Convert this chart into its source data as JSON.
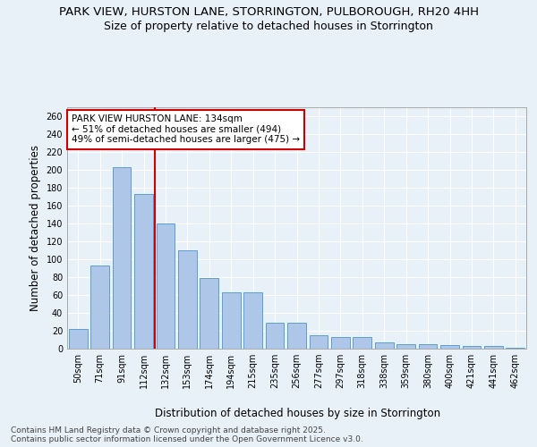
{
  "title_line1": "PARK VIEW, HURSTON LANE, STORRINGTON, PULBOROUGH, RH20 4HH",
  "title_line2": "Size of property relative to detached houses in Storrington",
  "xlabel": "Distribution of detached houses by size in Storrington",
  "ylabel": "Number of detached properties",
  "categories": [
    "50sqm",
    "71sqm",
    "91sqm",
    "112sqm",
    "132sqm",
    "153sqm",
    "174sqm",
    "194sqm",
    "215sqm",
    "235sqm",
    "256sqm",
    "277sqm",
    "297sqm",
    "318sqm",
    "338sqm",
    "359sqm",
    "380sqm",
    "400sqm",
    "421sqm",
    "441sqm",
    "462sqm"
  ],
  "values": [
    22,
    93,
    203,
    173,
    140,
    110,
    79,
    63,
    63,
    29,
    29,
    15,
    13,
    13,
    7,
    5,
    5,
    4,
    3,
    3,
    1
  ],
  "bar_color": "#aec6e8",
  "bar_edge_color": "#5a9fd4",
  "vline_x": 3.5,
  "vline_color": "#cc0000",
  "annotation_text": "PARK VIEW HURSTON LANE: 134sqm\n← 51% of detached houses are smaller (494)\n49% of semi-detached houses are larger (475) →",
  "annotation_box_color": "#ffffff",
  "annotation_box_edge": "#cc0000",
  "ylim": [
    0,
    270
  ],
  "yticks": [
    0,
    20,
    40,
    60,
    80,
    100,
    120,
    140,
    160,
    180,
    200,
    220,
    240,
    260
  ],
  "background_color": "#e8f0f8",
  "plot_bg_color": "#e8f0f8",
  "footer_line1": "Contains HM Land Registry data © Crown copyright and database right 2025.",
  "footer_line2": "Contains public sector information licensed under the Open Government Licence v3.0.",
  "title_fontsize": 9.5,
  "subtitle_fontsize": 9,
  "axis_label_fontsize": 8.5,
  "tick_fontsize": 7,
  "annotation_fontsize": 7.5,
  "footer_fontsize": 6.5
}
